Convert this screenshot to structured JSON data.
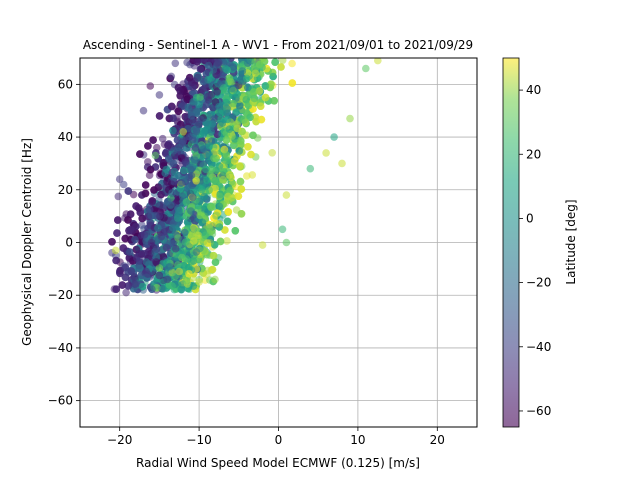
{
  "chart_data": {
    "type": "scatter",
    "title": "Ascending - Sentinel-1 A - WV1 - From 2021/09/01 to 2021/09/29",
    "xlabel": "Radial Wind Speed Model ECMWF (0.125) [m/s]",
    "ylabel": "Geophysical Doppler Centroid [Hz]",
    "xlim": [
      -25,
      25
    ],
    "ylim": [
      -70,
      70
    ],
    "xticks": [
      -20,
      -10,
      0,
      10,
      20
    ],
    "yticks": [
      -60,
      -40,
      -20,
      0,
      20,
      40,
      60
    ],
    "grid": true,
    "marker_alpha": 0.55,
    "colorbar": {
      "label": "Latitude [deg]",
      "range": [
        -65,
        50
      ],
      "ticks": [
        -60,
        -40,
        -20,
        0,
        20,
        40
      ],
      "colormap": "viridis"
    },
    "points_note_count": 4000,
    "points": [
      {
        "x": -20.0,
        "y": 24,
        "c": -45
      },
      {
        "x": -19.5,
        "y": 22,
        "c": -40
      },
      {
        "x": -19.2,
        "y": -19,
        "c": -50
      },
      {
        "x": -18.5,
        "y": -11,
        "c": -45
      },
      {
        "x": -20.5,
        "y": -3,
        "c": 45
      },
      {
        "x": -18.0,
        "y": 6,
        "c": -50
      },
      {
        "x": -17.5,
        "y": -7,
        "c": -45
      },
      {
        "x": -16.5,
        "y": -12,
        "c": -45
      },
      {
        "x": -17.0,
        "y": 50,
        "c": -45
      },
      {
        "x": -15.0,
        "y": 56,
        "c": -45
      },
      {
        "x": -13.5,
        "y": 63,
        "c": -45
      },
      {
        "x": -13.0,
        "y": 68,
        "c": -45
      },
      {
        "x": -14.0,
        "y": -14,
        "c": -45
      },
      {
        "x": -12.5,
        "y": -11,
        "c": 45
      },
      {
        "x": -10.0,
        "y": -15,
        "c": 45
      },
      {
        "x": -9.0,
        "y": -12,
        "c": 45
      },
      {
        "x": -8.0,
        "y": -14,
        "c": 40
      },
      {
        "x": 8.0,
        "y": 30,
        "c": 45
      },
      {
        "x": 9.0,
        "y": 47,
        "c": 40
      },
      {
        "x": 12.5,
        "y": 69,
        "c": 45
      },
      {
        "x": 11.0,
        "y": 66,
        "c": 30
      },
      {
        "x": 1.0,
        "y": 18,
        "c": 45
      },
      {
        "x": 4.0,
        "y": 28,
        "c": 20
      },
      {
        "x": 6.0,
        "y": 34,
        "c": 45
      },
      {
        "x": 7.0,
        "y": 40,
        "c": 10
      },
      {
        "x": 0.5,
        "y": 5,
        "c": 20
      },
      {
        "x": 1.0,
        "y": 0,
        "c": 30
      },
      {
        "x": -2.0,
        "y": -1,
        "c": 45
      },
      {
        "x": -15.5,
        "y": 33,
        "c": 30
      },
      {
        "x": -16.0,
        "y": 0,
        "c": -50
      },
      {
        "x": -15.0,
        "y": 10,
        "c": -45
      },
      {
        "x": -12.0,
        "y": 42,
        "c": 45
      }
    ]
  }
}
